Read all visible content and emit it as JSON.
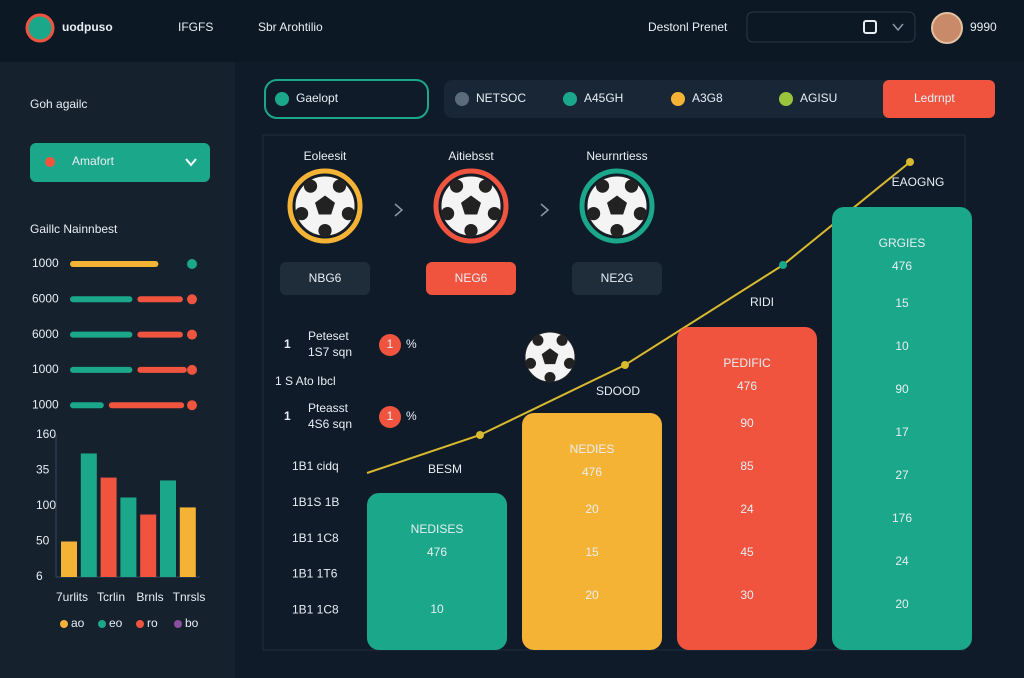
{
  "header": {
    "logo": "uodpuso",
    "brand": "IFGFS",
    "nav": "Sbr Arohtilio",
    "account": "Destonl Prenet",
    "user": "9990"
  },
  "sidebar": {
    "title": "Goh agailc",
    "dropdown": "Amafort",
    "section": "Gaillc Nainnbest",
    "progress": {
      "xlim": [
        0,
        100
      ],
      "rows": [
        {
          "label": "1000",
          "values": [
            68,
            0
          ]
        },
        {
          "label": "6000",
          "values": [
            48,
            35
          ]
        },
        {
          "label": "6000",
          "values": [
            48,
            35
          ]
        },
        {
          "label": "1000",
          "values": [
            48,
            38
          ]
        },
        {
          "label": "1000",
          "values": [
            26,
            58
          ]
        }
      ]
    },
    "chart": {
      "ylim": [
        0,
        100
      ],
      "tick_labels": [
        "160",
        "35",
        "100",
        "50",
        "6"
      ],
      "values": [
        25,
        87,
        70,
        56,
        44,
        68,
        49
      ],
      "colors": [
        "#f5b335",
        "#1ba88a",
        "#f0543e",
        "#1ba88a",
        "#f0543e",
        "#1ba88a",
        "#f5b335"
      ],
      "x_labels": [
        "7urlits",
        "Tcrlin",
        "Brnls",
        "Tnrsls"
      ],
      "legend": [
        {
          "name": "ao",
          "color": "#f5b335"
        },
        {
          "name": "eo",
          "color": "#1ba88a"
        },
        {
          "name": "ro",
          "color": "#f0543e"
        },
        {
          "name": "bo",
          "color": "#8a4fa0"
        }
      ]
    }
  },
  "toolbar": {
    "active": "Gaelopt",
    "tabs": [
      {
        "label": "NETSOC",
        "color": "#5a6b7c"
      },
      {
        "label": "A45GH",
        "color": "#1ba88a"
      },
      {
        "label": "A3G8",
        "color": "#f5b335"
      },
      {
        "label": "AGISU",
        "color": "#9ac43c"
      }
    ],
    "button": "Ledrnpt"
  },
  "matches": [
    {
      "title": "Eoleesit",
      "tag": "NBG6"
    },
    {
      "title": "Aitiebsst",
      "tag": "NEG6"
    },
    {
      "title": "Neurnrtiess",
      "tag": "NE2G"
    }
  ],
  "stats": [
    {
      "rank": "1",
      "name": "Peteset",
      "detail": "1S7 sqn",
      "badge": "1",
      "pct": "%"
    },
    {
      "rank": "1",
      "name": "Pteasst",
      "detail": "4S6 sqn",
      "badge": "1",
      "pct": "%"
    }
  ],
  "stats_note": "1 S Ato Ibcl",
  "row_labels": [
    "1B1 cidq",
    "1B1S 1B",
    "1B1 1C8",
    "1B1 1T6",
    "1B1 1C8"
  ],
  "columns": [
    {
      "caption": "BESM",
      "heading": "NEDISES",
      "lead": "476",
      "values": [
        "10"
      ]
    },
    {
      "caption": "SDOOD",
      "heading": "NEDIES",
      "lead": "476",
      "values": [
        "20",
        "15",
        "20"
      ]
    },
    {
      "caption": "RIDI",
      "heading": "PEDIFIC",
      "lead": "476",
      "values": [
        "90",
        "85",
        "24",
        "45",
        "30"
      ]
    },
    {
      "caption": "EAOGNG",
      "heading": "GRGIES",
      "lead": "476",
      "values": [
        "15",
        "10",
        "90",
        "17",
        "27",
        "176",
        "24",
        "20"
      ]
    }
  ]
}
